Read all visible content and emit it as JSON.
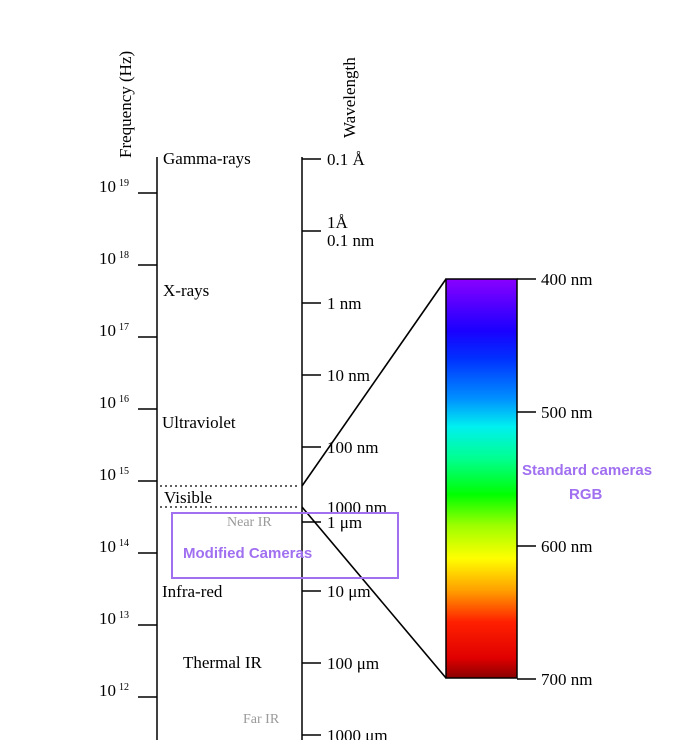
{
  "axes": {
    "frequency_title": "Frequency (Hz)",
    "wavelength_title": "Wavelength"
  },
  "frequency_ticks": [
    {
      "base": "10",
      "exp": "19"
    },
    {
      "base": "10",
      "exp": "18"
    },
    {
      "base": "10",
      "exp": "17"
    },
    {
      "base": "10",
      "exp": "16"
    },
    {
      "base": "10",
      "exp": "15"
    },
    {
      "base": "10",
      "exp": "14"
    },
    {
      "base": "10",
      "exp": "13"
    },
    {
      "base": "10",
      "exp": "12"
    }
  ],
  "bands": {
    "gamma": "Gamma-rays",
    "xrays": "X-rays",
    "ultraviolet": "Ultraviolet",
    "visible": "Visible",
    "near_ir": "Near IR",
    "infrared": "Infra-red",
    "thermal_ir": "Thermal IR",
    "far_ir": "Far IR"
  },
  "wavelength_ticks": [
    {
      "lines": [
        "0.1 Å"
      ]
    },
    {
      "lines": [
        "1Å",
        "0.1 nm"
      ]
    },
    {
      "lines": [
        "1 nm"
      ]
    },
    {
      "lines": [
        "10 nm"
      ]
    },
    {
      "lines": [
        "100 nm"
      ]
    },
    {
      "lines": [
        "1000 nm"
      ]
    },
    {
      "lines": [
        "1 μm"
      ]
    },
    {
      "lines": [
        "10 μm"
      ]
    },
    {
      "lines": [
        "100 μm"
      ]
    },
    {
      "lines": [
        "1000 μm"
      ]
    }
  ],
  "visible_scale": {
    "labels": [
      "400 nm",
      "500 nm",
      "600 nm",
      "700 nm"
    ]
  },
  "annotations": {
    "modified_cameras": "Modified Cameras",
    "standard_cameras_line1": "Standard cameras",
    "standard_cameras_line2": "RGB"
  },
  "colors": {
    "annotation": "#a070f0",
    "annotation_box": "#a070f0",
    "muted_label": "#9a9a9a"
  }
}
